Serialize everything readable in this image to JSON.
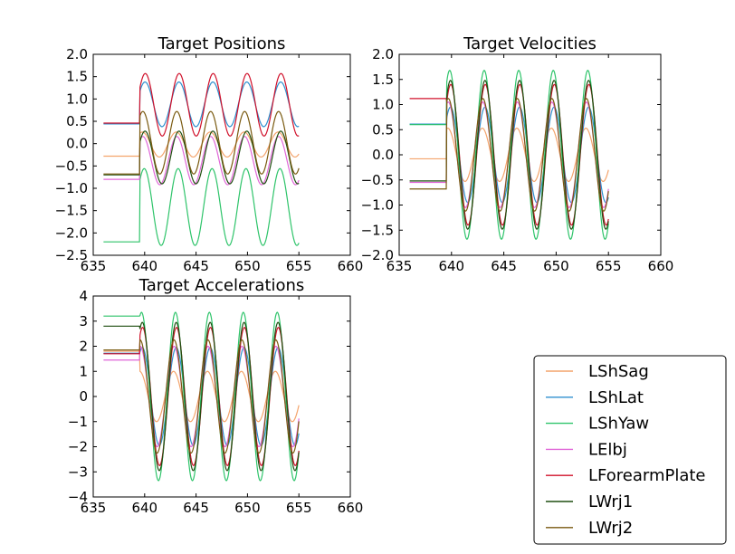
{
  "chart_data": [
    {
      "type": "line",
      "title": "Target Positions",
      "xlim": [
        635,
        660
      ],
      "ylim": [
        -2.5,
        2.0
      ],
      "xticks": [
        635,
        640,
        645,
        650,
        655,
        660
      ],
      "yticks": [
        -2.5,
        -2.0,
        -1.5,
        -1.0,
        -0.5,
        0.0,
        0.5,
        1.0,
        1.5,
        2.0
      ],
      "xtick_labels": [
        "635",
        "640",
        "645",
        "650",
        "655",
        "660"
      ],
      "ytick_labels": [
        "−2.5",
        "−2.0",
        "−1.5",
        "−1.0",
        "−0.5",
        "0.0",
        "0.5",
        "1.0",
        "1.5",
        "2.0"
      ],
      "x_start": 636,
      "x_switch": 639.5,
      "x_end": 655,
      "period": 3.3,
      "series": [
        {
          "name": "LShSag",
          "initial": -0.28,
          "center": -0.02,
          "amplitude": 0.28,
          "phase": 1.05
        },
        {
          "name": "LShLat",
          "initial": 0.44,
          "center": 0.88,
          "amplitude": 0.5,
          "phase": 0.55
        },
        {
          "name": "LShYaw",
          "initial": -2.2,
          "center": -1.42,
          "amplitude": 0.86,
          "phase": 0.7
        },
        {
          "name": "LElbj",
          "initial": -0.8,
          "center": -0.38,
          "amplitude": 0.54,
          "phase": 0.95
        },
        {
          "name": "LForearmPlate",
          "initial": 0.46,
          "center": 0.87,
          "amplitude": 0.7,
          "phase": 0.5
        },
        {
          "name": "LWrj1",
          "initial": -0.7,
          "center": -0.31,
          "amplitude": 0.59,
          "phase": 0.55
        },
        {
          "name": "LWrj2",
          "initial": -0.68,
          "center": 0.02,
          "amplitude": 0.7,
          "phase": 0.95
        }
      ]
    },
    {
      "type": "line",
      "title": "Target Velocities",
      "xlim": [
        635,
        660
      ],
      "ylim": [
        -2.0,
        2.0
      ],
      "xticks": [
        635,
        640,
        645,
        650,
        655,
        660
      ],
      "yticks": [
        -2.0,
        -1.5,
        -1.0,
        -0.5,
        0.0,
        0.5,
        1.0,
        1.5,
        2.0
      ],
      "xtick_labels": [
        "635",
        "640",
        "645",
        "650",
        "655",
        "660"
      ],
      "ytick_labels": [
        "−2.0",
        "−1.5",
        "−1.0",
        "−0.5",
        "0.0",
        "0.5",
        "1.0",
        "1.5",
        "2.0"
      ],
      "x_start": 636,
      "x_switch": 639.5,
      "x_end": 655,
      "period": 3.3,
      "series": [
        {
          "name": "LShSag",
          "initial": -0.08,
          "center": 0.0,
          "amplitude": 0.53,
          "phase": 1.3
        },
        {
          "name": "LShLat",
          "initial": 0.61,
          "center": 0.0,
          "amplitude": 0.95,
          "phase": 0.8
        },
        {
          "name": "LShYaw",
          "initial": 0.6,
          "center": 0.0,
          "amplitude": 1.68,
          "phase": 0.95
        },
        {
          "name": "LElbj",
          "initial": -0.55,
          "center": 0.0,
          "amplitude": 1.05,
          "phase": 1.2
        },
        {
          "name": "LForearmPlate",
          "initial": 1.12,
          "center": 0.0,
          "amplitude": 1.4,
          "phase": 0.75
        },
        {
          "name": "LWrj1",
          "initial": -0.52,
          "center": 0.0,
          "amplitude": 1.48,
          "phase": 0.8
        },
        {
          "name": "LWrj2",
          "initial": -0.68,
          "center": 0.0,
          "amplitude": 1.12,
          "phase": 1.2
        }
      ]
    },
    {
      "type": "line",
      "title": "Target Accelerations",
      "xlim": [
        635,
        660
      ],
      "ylim": [
        -4,
        4
      ],
      "xticks": [
        635,
        640,
        645,
        650,
        655,
        660
      ],
      "yticks": [
        -4,
        -3,
        -2,
        -1,
        0,
        1,
        2,
        3,
        4
      ],
      "xtick_labels": [
        "635",
        "640",
        "645",
        "650",
        "655",
        "660"
      ],
      "ytick_labels": [
        "−4",
        "−3",
        "−2",
        "−1",
        "0",
        "1",
        "2",
        "3",
        "4"
      ],
      "x_start": 636,
      "x_switch": 639.5,
      "x_end": 655,
      "period": 3.3,
      "series": [
        {
          "name": "LShSag",
          "initial": 1.8,
          "center": 0.0,
          "amplitude": 1.0,
          "phase": 1.55
        },
        {
          "name": "LShLat",
          "initial": 1.72,
          "center": 0.0,
          "amplitude": 1.95,
          "phase": 1.05
        },
        {
          "name": "LShYaw",
          "initial": 3.2,
          "center": 0.0,
          "amplitude": 3.35,
          "phase": 1.2
        },
        {
          "name": "LElbj",
          "initial": 1.45,
          "center": 0.0,
          "amplitude": 2.0,
          "phase": 1.45
        },
        {
          "name": "LForearmPlate",
          "initial": 1.7,
          "center": 0.0,
          "amplitude": 2.75,
          "phase": 1.0
        },
        {
          "name": "LWrj1",
          "initial": 2.8,
          "center": 0.0,
          "amplitude": 2.95,
          "phase": 1.05
        },
        {
          "name": "LWrj2",
          "initial": 1.85,
          "center": 0.0,
          "amplitude": 2.25,
          "phase": 1.45
        }
      ]
    }
  ],
  "legend": {
    "placement": "lower-right",
    "entries": [
      {
        "label": "LShSag",
        "color": "#f4a46c"
      },
      {
        "label": "LShLat",
        "color": "#2e8fcf"
      },
      {
        "label": "LShYaw",
        "color": "#2ec46a"
      },
      {
        "label": "LElbj",
        "color": "#e066d8"
      },
      {
        "label": "LForearmPlate",
        "color": "#d0102a"
      },
      {
        "label": "LWrj1",
        "color": "#1f4f10"
      },
      {
        "label": "LWrj2",
        "color": "#7a5a10"
      }
    ]
  }
}
